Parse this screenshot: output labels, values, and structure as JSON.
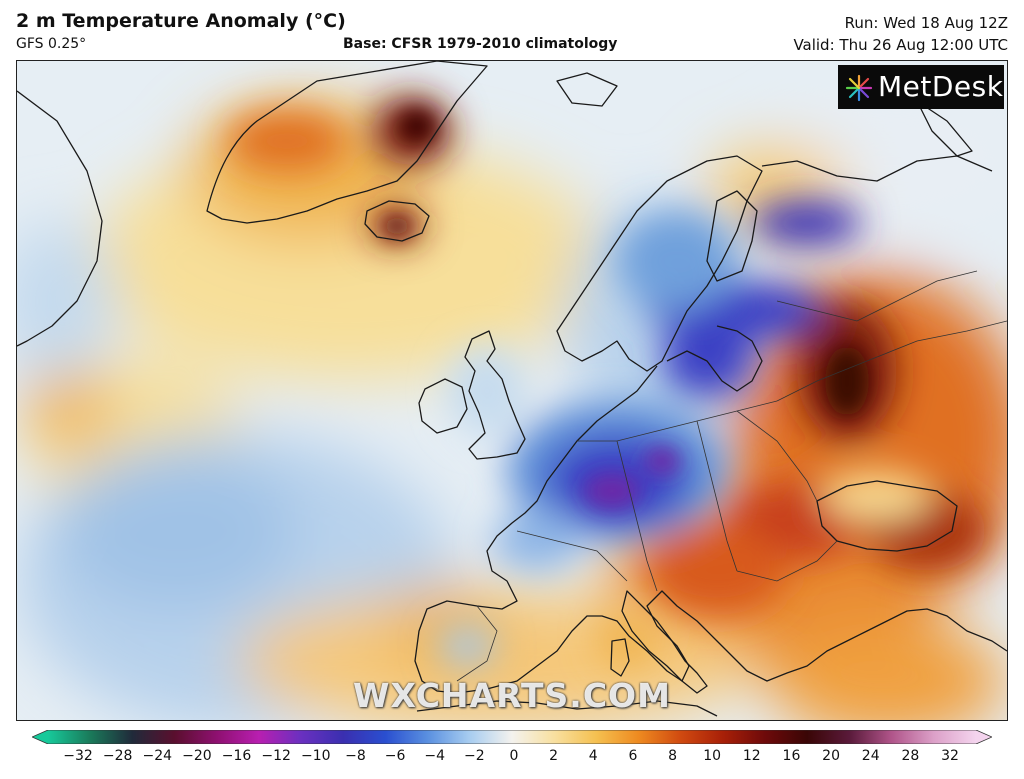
{
  "header": {
    "title": "2 m Temperature Anomaly (°C)",
    "model": "GFS 0.25°",
    "base": "Base: CFSR 1979-2010 climatology",
    "run": "Run: Wed 18 Aug 12Z",
    "valid": "Valid: Thu 26 Aug 12:00 UTC"
  },
  "logo": {
    "text": "MetDesk",
    "icon": "starburst-icon"
  },
  "watermark": "WXCHARTS.COM",
  "colorbar": {
    "labels": [
      "−32",
      "−28",
      "−24",
      "−20",
      "−16",
      "−12",
      "−10",
      "−8",
      "−6",
      "−4",
      "−2",
      "0",
      "2",
      "4",
      "6",
      "8",
      "10",
      "12",
      "16",
      "20",
      "24",
      "28",
      "32"
    ],
    "colors": [
      "#17c99a",
      "#1a7a5a",
      "#202a3a",
      "#5a0f2e",
      "#8e1070",
      "#b81fb0",
      "#6a30c0",
      "#3a2fb0",
      "#2a4fd0",
      "#5a90e0",
      "#a8cdf0",
      "#f4f2ee",
      "#f8e0a0",
      "#f5c050",
      "#ee8a20",
      "#d04a10",
      "#a82008",
      "#6e0a0a",
      "#3a0606",
      "#5a1a3a",
      "#b0558a",
      "#dca0c8",
      "#f4d4ee"
    ]
  },
  "map": {
    "region": "Europe and North Atlantic",
    "colors": {
      "ocean_base": "#dfe9f2",
      "cold_light": "#a9c9e8",
      "cold_mid": "#5d8fd8",
      "cold_strong": "#3b3fc4",
      "cold_extreme": "#6b2aa8",
      "warm_light": "#f7df9a",
      "warm_mid": "#f0b450",
      "warm_strong": "#e07020",
      "hot": "#c8401a",
      "very_hot": "#7a1a10",
      "coastline": "#1a1a1a"
    }
  }
}
